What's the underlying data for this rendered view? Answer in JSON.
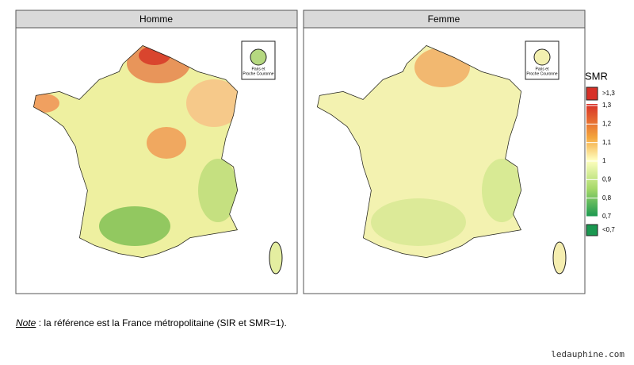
{
  "panels": [
    {
      "title": "Homme"
    },
    {
      "title": "Femme"
    }
  ],
  "inset": {
    "lines": [
      "Paris et",
      "Proche Couronne"
    ]
  },
  "legend": {
    "title": "SMR",
    "top_label": ">1,3",
    "labels": [
      "1,3",
      "1,2",
      "1,1",
      "1",
      "0,9",
      "0,8",
      "0,7"
    ],
    "bottom_label": "<0,7"
  },
  "note": {
    "label": "Note",
    "text": ": la référence est la France métropolitaine (SIR et SMR=1)."
  },
  "watermark": "ledauphine.com"
}
